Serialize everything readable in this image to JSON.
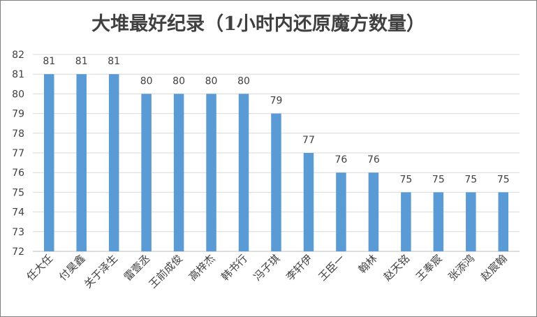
{
  "chart_data": {
    "type": "bar",
    "title": "大堆最好纪录（1小时内还原魔方数量）",
    "categories": [
      "任大任",
      "付昊鑫",
      "关于泽生",
      "雷壹丞",
      "王前成俊",
      "高梓杰",
      "韩书行",
      "冯子琪",
      "李轩伊",
      "王臣一",
      "翰林",
      "赵天铭",
      "王奉宸",
      "张添鸿",
      "赵宸翰"
    ],
    "values": [
      81,
      81,
      81,
      80,
      80,
      80,
      80,
      79,
      77,
      76,
      76,
      75,
      75,
      75,
      75
    ],
    "data_labels": [
      "81",
      "81",
      "81",
      "80",
      "80",
      "80",
      "80",
      "79",
      "77",
      "76",
      "76",
      "75",
      "75",
      "75",
      "75"
    ],
    "ylim": [
      72,
      82
    ],
    "yticks": [
      "72",
      "73",
      "74",
      "75",
      "76",
      "77",
      "78",
      "79",
      "80",
      "81",
      "82"
    ],
    "xlabel": "",
    "ylabel": "",
    "grid": true,
    "legend": "none",
    "bar_color": "#5B9BD5",
    "grid_color": "#D9D9D9"
  }
}
